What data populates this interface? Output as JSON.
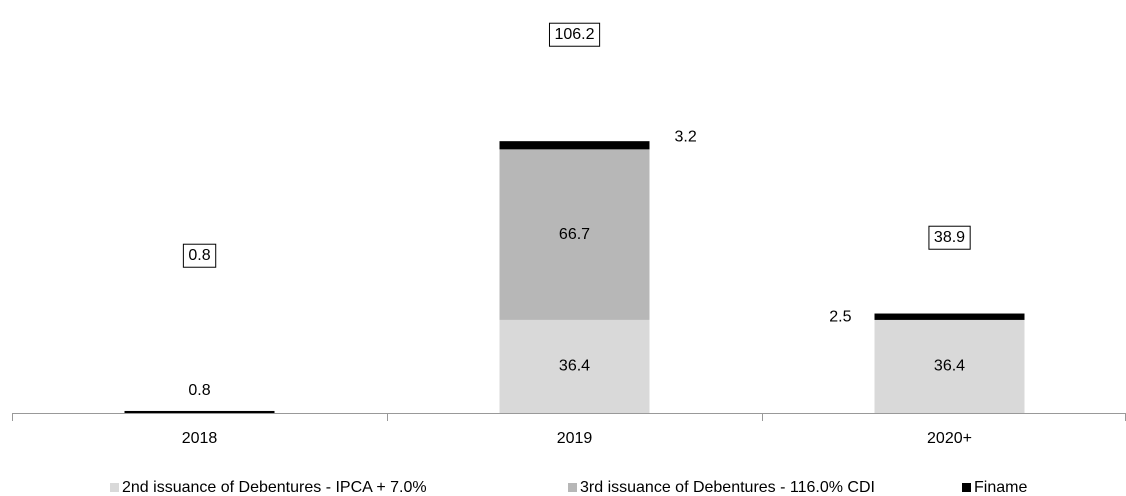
{
  "chart_data": {
    "type": "stacked_bar",
    "categories": [
      "2018",
      "2019",
      "2020+"
    ],
    "series": [
      {
        "name": "2nd issuance of Debentures - IPCA + 7.0%",
        "color": "#d9d9d9",
        "values": [
          null,
          36.4,
          36.4
        ]
      },
      {
        "name": "3rd issuance of Debentures - 116.0% CDI",
        "color": "#b7b7b7",
        "values": [
          null,
          66.7,
          null
        ]
      },
      {
        "name": "Finame",
        "color": "#000000",
        "values": [
          0.8,
          3.2,
          2.5
        ]
      }
    ],
    "totals": [
      0.8,
      106.2,
      38.9
    ],
    "ylim": [
      0,
      140
    ],
    "legend": "bottom"
  }
}
